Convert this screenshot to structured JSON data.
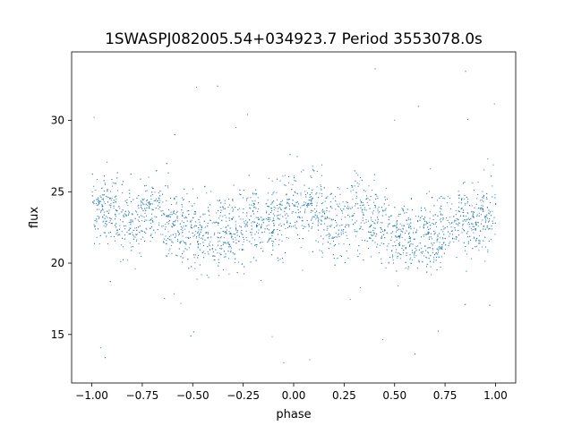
{
  "chart_data": {
    "type": "scatter",
    "title": "1SWASPJ082005.54+034923.7 Period 3553078.0s",
    "xlabel": "phase",
    "ylabel": "flux",
    "xlim": [
      -1.1,
      1.1
    ],
    "ylim": [
      11.6,
      34.8
    ],
    "xticks": [
      -1.0,
      -0.75,
      -0.5,
      -0.25,
      0.0,
      0.25,
      0.5,
      0.75,
      1.0
    ],
    "xtick_labels": [
      "−1.00",
      "−0.75",
      "−0.50",
      "−0.25",
      "0.00",
      "0.25",
      "0.50",
      "0.75",
      "1.00"
    ],
    "yticks": [
      15,
      20,
      25,
      30
    ],
    "ytick_labels": [
      "15",
      "20",
      "25",
      "30"
    ],
    "grid": false,
    "point_color": "#1f77b4",
    "series": [
      {
        "phase_flux_profile": [
          {
            "x": -1.0,
            "y": 24.0
          },
          {
            "x": -0.9,
            "y": 24.0
          },
          {
            "x": -0.8,
            "y": 22.5
          },
          {
            "x": -0.7,
            "y": 24.0
          },
          {
            "x": -0.6,
            "y": 23.0
          },
          {
            "x": -0.5,
            "y": 22.0
          },
          {
            "x": -0.4,
            "y": 22.0
          },
          {
            "x": -0.3,
            "y": 22.0
          },
          {
            "x": -0.2,
            "y": 23.0
          },
          {
            "x": -0.1,
            "y": 23.0
          },
          {
            "x": 0.0,
            "y": 24.0
          },
          {
            "x": 0.1,
            "y": 24.0
          },
          {
            "x": 0.2,
            "y": 22.5
          },
          {
            "x": 0.3,
            "y": 24.0
          },
          {
            "x": 0.4,
            "y": 23.0
          },
          {
            "x": 0.5,
            "y": 22.0
          },
          {
            "x": 0.6,
            "y": 22.0
          },
          {
            "x": 0.7,
            "y": 22.0
          },
          {
            "x": 0.8,
            "y": 23.0
          },
          {
            "x": 0.9,
            "y": 23.0
          },
          {
            "x": 1.0,
            "y": 24.0
          }
        ],
        "typical_spread": 1.8,
        "y_range_observed": [
          12.8,
          33.8
        ]
      }
    ]
  }
}
